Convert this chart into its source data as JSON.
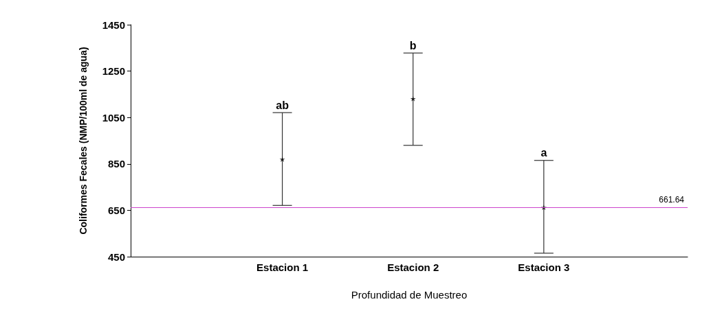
{
  "chart_data": {
    "type": "scatter",
    "xlabel": "Profundidad de Muestreo",
    "ylabel": "Coliformes Fecales (NMP/100ml de agua)",
    "categories": [
      "Estacion 1",
      "Estacion 2",
      "Estacion 3"
    ],
    "series": [
      {
        "color": "#000000",
        "values": [
          870,
          1131,
          662
        ],
        "errors": [
          [
            671,
            1071
          ],
          [
            930,
            1328
          ],
          [
            465,
            865
          ]
        ]
      }
    ],
    "marker": "star",
    "ylim": [
      450,
      1450
    ],
    "yticks": [
      450,
      650,
      850,
      1050,
      1250,
      1450
    ],
    "grid": false,
    "ref_lines": [
      {
        "axis": "y",
        "value": 661.64,
        "label": "661.64",
        "color": "#cc44cc"
      }
    ],
    "annotations": [
      {
        "text": "ab",
        "x": "Estacion 1",
        "y": 1071
      },
      {
        "text": "b",
        "x": "Estacion 2",
        "y": 1328
      },
      {
        "text": "a",
        "x": "Estacion 3",
        "y": 865
      }
    ]
  }
}
